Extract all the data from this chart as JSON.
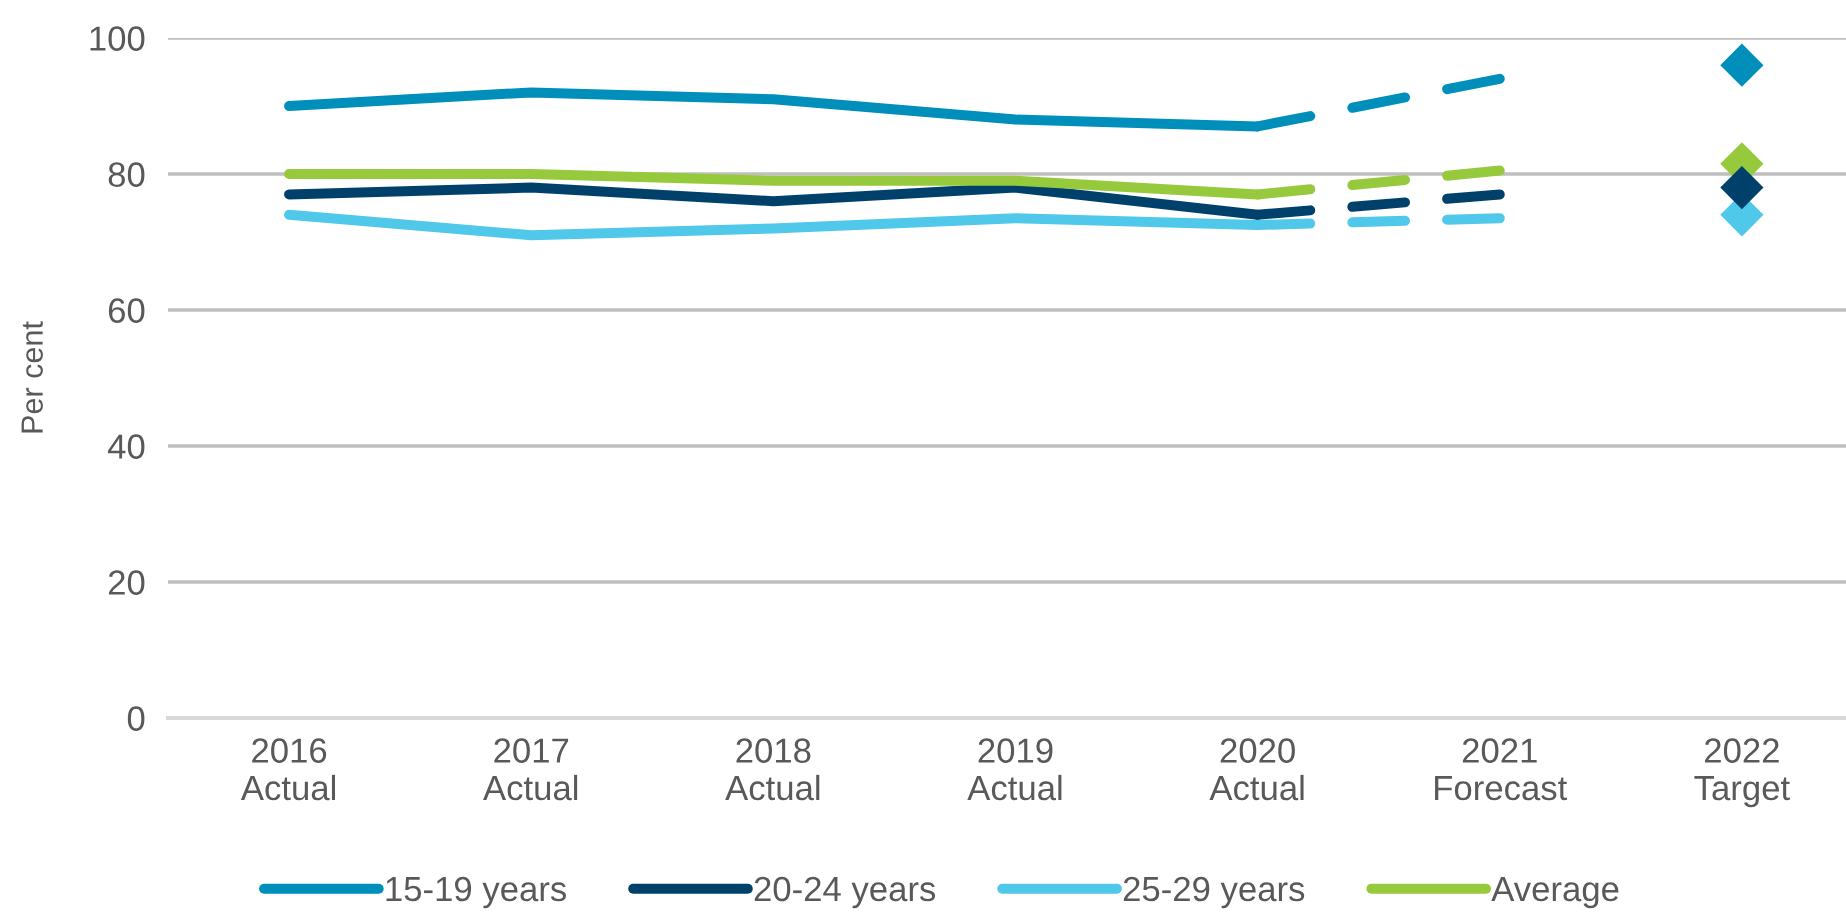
{
  "chart_data": {
    "type": "line",
    "ylabel": "Per cent",
    "categories": [
      "2016\nActual",
      "2017\nActual",
      "2018\nActual",
      "2019\nActual",
      "2020\nActual",
      "2021\nForecast",
      "2022\nTarget"
    ],
    "ylim": [
      0,
      100
    ],
    "yticks": [
      0,
      20,
      40,
      60,
      80,
      100
    ],
    "grid": "y",
    "legend": "bottom",
    "line_style": "solid",
    "series": [
      {
        "name": "15-19 years",
        "color": "#008fbb",
        "values": [
          90,
          92,
          91,
          88,
          87,
          null,
          null
        ]
      },
      {
        "name": "20-24 years",
        "color": "#00416b",
        "values": [
          77,
          78,
          76,
          78,
          74,
          null,
          null
        ]
      },
      {
        "name": "25-29 years",
        "color": "#4fc8ea",
        "values": [
          74,
          71,
          72,
          73.5,
          72.5,
          null,
          null
        ]
      },
      {
        "name": "Average",
        "color": "#97c93d",
        "values": [
          80,
          80,
          79,
          79,
          77,
          null,
          null
        ]
      },
      {
        "color": "#008fbb",
        "line_style": "dashed",
        "values": [
          null,
          null,
          null,
          null,
          87,
          94,
          null
        ]
      },
      {
        "color": "#00416b",
        "line_style": "dashed",
        "values": [
          null,
          null,
          null,
          null,
          74,
          77,
          null
        ]
      },
      {
        "color": "#4fc8ea",
        "line_style": "dashed",
        "values": [
          null,
          null,
          null,
          null,
          72.5,
          73.5,
          null
        ]
      },
      {
        "color": "#97c93d",
        "line_style": "dashed",
        "values": [
          null,
          null,
          null,
          null,
          77,
          80.5,
          null
        ]
      },
      {
        "type": "scatter",
        "marker": "diamond",
        "color": "#008fbb",
        "values": [
          null,
          null,
          null,
          null,
          null,
          null,
          96
        ]
      },
      {
        "type": "scatter",
        "marker": "diamond",
        "color": "#4fc8ea",
        "values": [
          null,
          null,
          null,
          null,
          null,
          null,
          74
        ]
      },
      {
        "type": "scatter",
        "marker": "diamond",
        "color": "#97c93d",
        "values": [
          null,
          null,
          null,
          null,
          null,
          null,
          81.5
        ]
      },
      {
        "type": "scatter",
        "marker": "diamond",
        "color": "#00416b",
        "values": [
          null,
          null,
          null,
          null,
          null,
          null,
          78
        ]
      }
    ]
  }
}
